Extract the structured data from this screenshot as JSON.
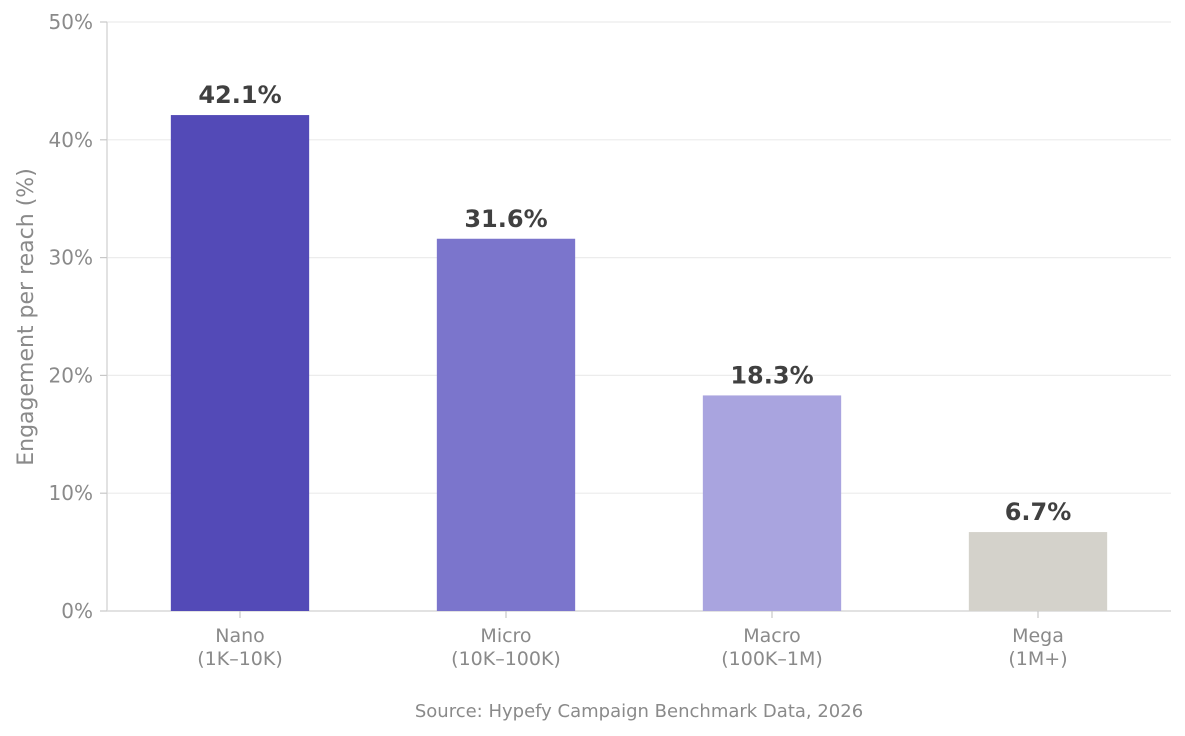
{
  "chart_data": {
    "type": "bar",
    "categories": [
      [
        "Nano",
        "(1K–10K)"
      ],
      [
        "Micro",
        "(10K–100K)"
      ],
      [
        "Macro",
        "(100K–1M)"
      ],
      [
        "Mega",
        "(1M+)"
      ]
    ],
    "values": [
      42.1,
      31.6,
      18.3,
      6.7
    ],
    "value_labels": [
      "42.1%",
      "31.6%",
      "18.3%",
      "6.7%"
    ],
    "colors": [
      "#534ab7",
      "#7b75cc",
      "#a9a4df",
      "#d4d2cb"
    ],
    "ylabel": "Engagement per reach (%)",
    "ylim": [
      0,
      50
    ],
    "yticks": [
      0,
      10,
      20,
      30,
      40,
      50
    ],
    "ytick_labels": [
      "0%",
      "10%",
      "20%",
      "30%",
      "40%",
      "50%"
    ],
    "grid": "horizontal",
    "source": "Source: Hypefy Campaign Benchmark Data, 2026"
  }
}
